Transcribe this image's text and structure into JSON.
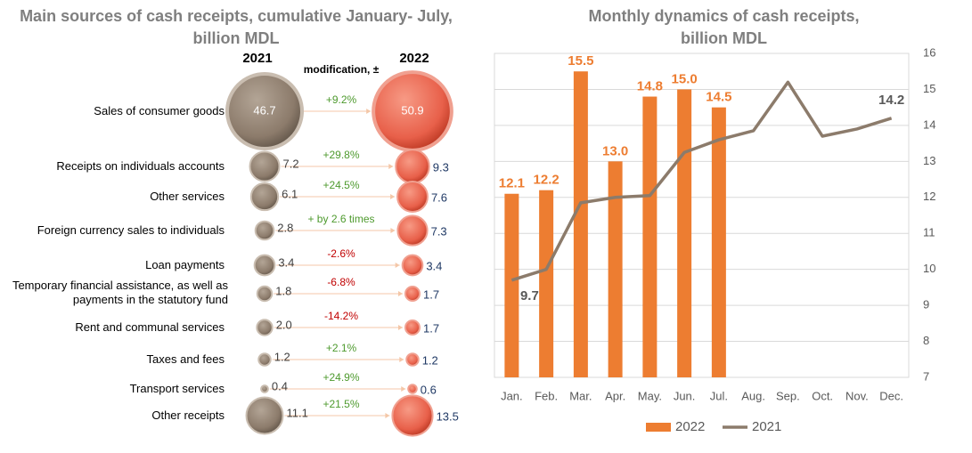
{
  "chart_data": [
    {
      "type": "bubble_compare",
      "title": "Main sources of cash receipts, cumulative January- July, billion MDL",
      "change_label": "modification, ±",
      "categories": [
        "Sales of consumer goods",
        "Receipts on individuals accounts",
        "Other services",
        "Foreign currency sales to individuals",
        "Loan payments",
        "Temporary financial assistance, as well as payments in the statutory fund",
        "Rent and communal services",
        "Taxes and fees",
        "Transport services",
        "Other receipts"
      ],
      "series": [
        {
          "name": "2021",
          "color": "#8c7b6b",
          "values": [
            46.7,
            7.2,
            6.1,
            2.8,
            3.4,
            1.8,
            2.0,
            1.2,
            0.4,
            11.1
          ],
          "value_labels": [
            "46.7",
            "7.2",
            "6.1",
            "2.8",
            "3.4",
            "1.8",
            "2.0",
            "1.2",
            "0.4",
            "11.1"
          ]
        },
        {
          "name": "2022",
          "color": "#e8604a",
          "values": [
            50.9,
            9.3,
            7.6,
            7.3,
            3.4,
            1.7,
            1.7,
            1.2,
            0.6,
            13.5
          ],
          "value_labels": [
            "50.9",
            "9.3",
            "7.6",
            "7.3",
            "3.4",
            "1.7",
            "1.7",
            "1.2",
            "0.6",
            "13.5"
          ]
        }
      ],
      "changes": [
        "+9.2%",
        "+29.8%",
        "+24.5%",
        "+ by 2.6 times",
        "-2.6%",
        "-6.8%",
        "-14.2%",
        "+2.1%",
        "+24.9%",
        "+21.5%"
      ],
      "change_colors": {
        "up": "#4e9a2e",
        "down": "#c00000"
      }
    },
    {
      "type": "combo",
      "title": "Monthly dynamics of cash receipts, billion MDL",
      "categories": [
        "Jan.",
        "Feb.",
        "Mar.",
        "Apr.",
        "May.",
        "Jun.",
        "Jul.",
        "Aug.",
        "Sep.",
        "Oct.",
        "Nov.",
        "Dec."
      ],
      "series": [
        {
          "name": "2022",
          "kind": "bar",
          "color": "#ed7d31",
          "values": [
            12.1,
            12.2,
            15.5,
            13.0,
            14.8,
            15.0,
            14.5,
            null,
            null,
            null,
            null,
            null
          ],
          "value_labels": [
            "12.1",
            "12.2",
            "15.5",
            "13.0",
            "14.8",
            "15.0",
            "14.5",
            null,
            null,
            null,
            null,
            null
          ]
        },
        {
          "name": "2021",
          "kind": "line",
          "color": "#8c7b6b",
          "values": [
            9.7,
            10.0,
            11.85,
            12.0,
            12.05,
            13.25,
            13.6,
            13.85,
            15.2,
            13.7,
            13.9,
            14.2
          ],
          "value_labels": [
            "9.7",
            null,
            null,
            null,
            null,
            null,
            null,
            null,
            null,
            null,
            null,
            "14.2"
          ]
        }
      ],
      "ylim": [
        7,
        16
      ],
      "yticks": [
        7,
        8,
        9,
        10,
        11,
        12,
        13,
        14,
        15,
        16
      ],
      "y_axis_side": "right",
      "grid": true,
      "legend": "bottom"
    }
  ]
}
